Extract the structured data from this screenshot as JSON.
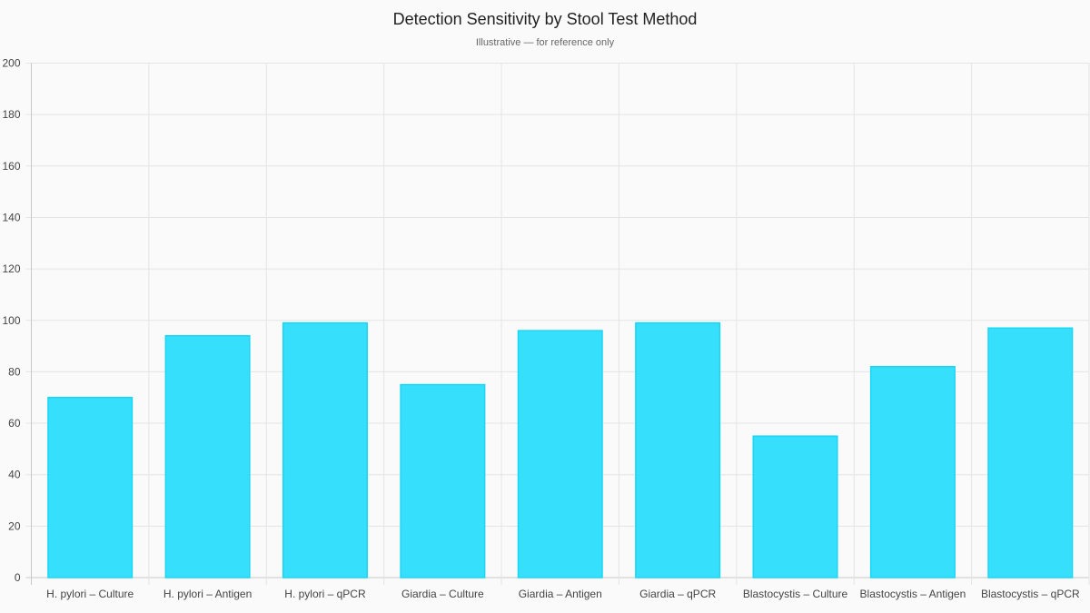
{
  "chart_data": {
    "type": "bar",
    "title": "Detection Sensitivity by Stool Test Method",
    "subtitle": "Illustrative — for reference only",
    "categories": [
      "H. pylori – Culture",
      "H. pylori – Antigen",
      "H. pylori – qPCR",
      "Giardia – Culture",
      "Giardia – Antigen",
      "Giardia – qPCR",
      "Blastocystis – Culture",
      "Blastocystis – Antigen",
      "Blastocystis – qPCR"
    ],
    "values": [
      70,
      94,
      99,
      75,
      96,
      99,
      55,
      82,
      97
    ],
    "xlabel": "",
    "ylabel": "",
    "ylim": [
      0,
      200
    ],
    "yticks": [
      0,
      20,
      40,
      60,
      80,
      100,
      120,
      140,
      160,
      180,
      200
    ],
    "grid": true,
    "colors": {
      "bar_fill": "#36E0FC",
      "bar_border": "#1AD6F5",
      "grid": "#e4e4e4",
      "axis": "#c8c8c8",
      "background": "#fafafa"
    }
  }
}
